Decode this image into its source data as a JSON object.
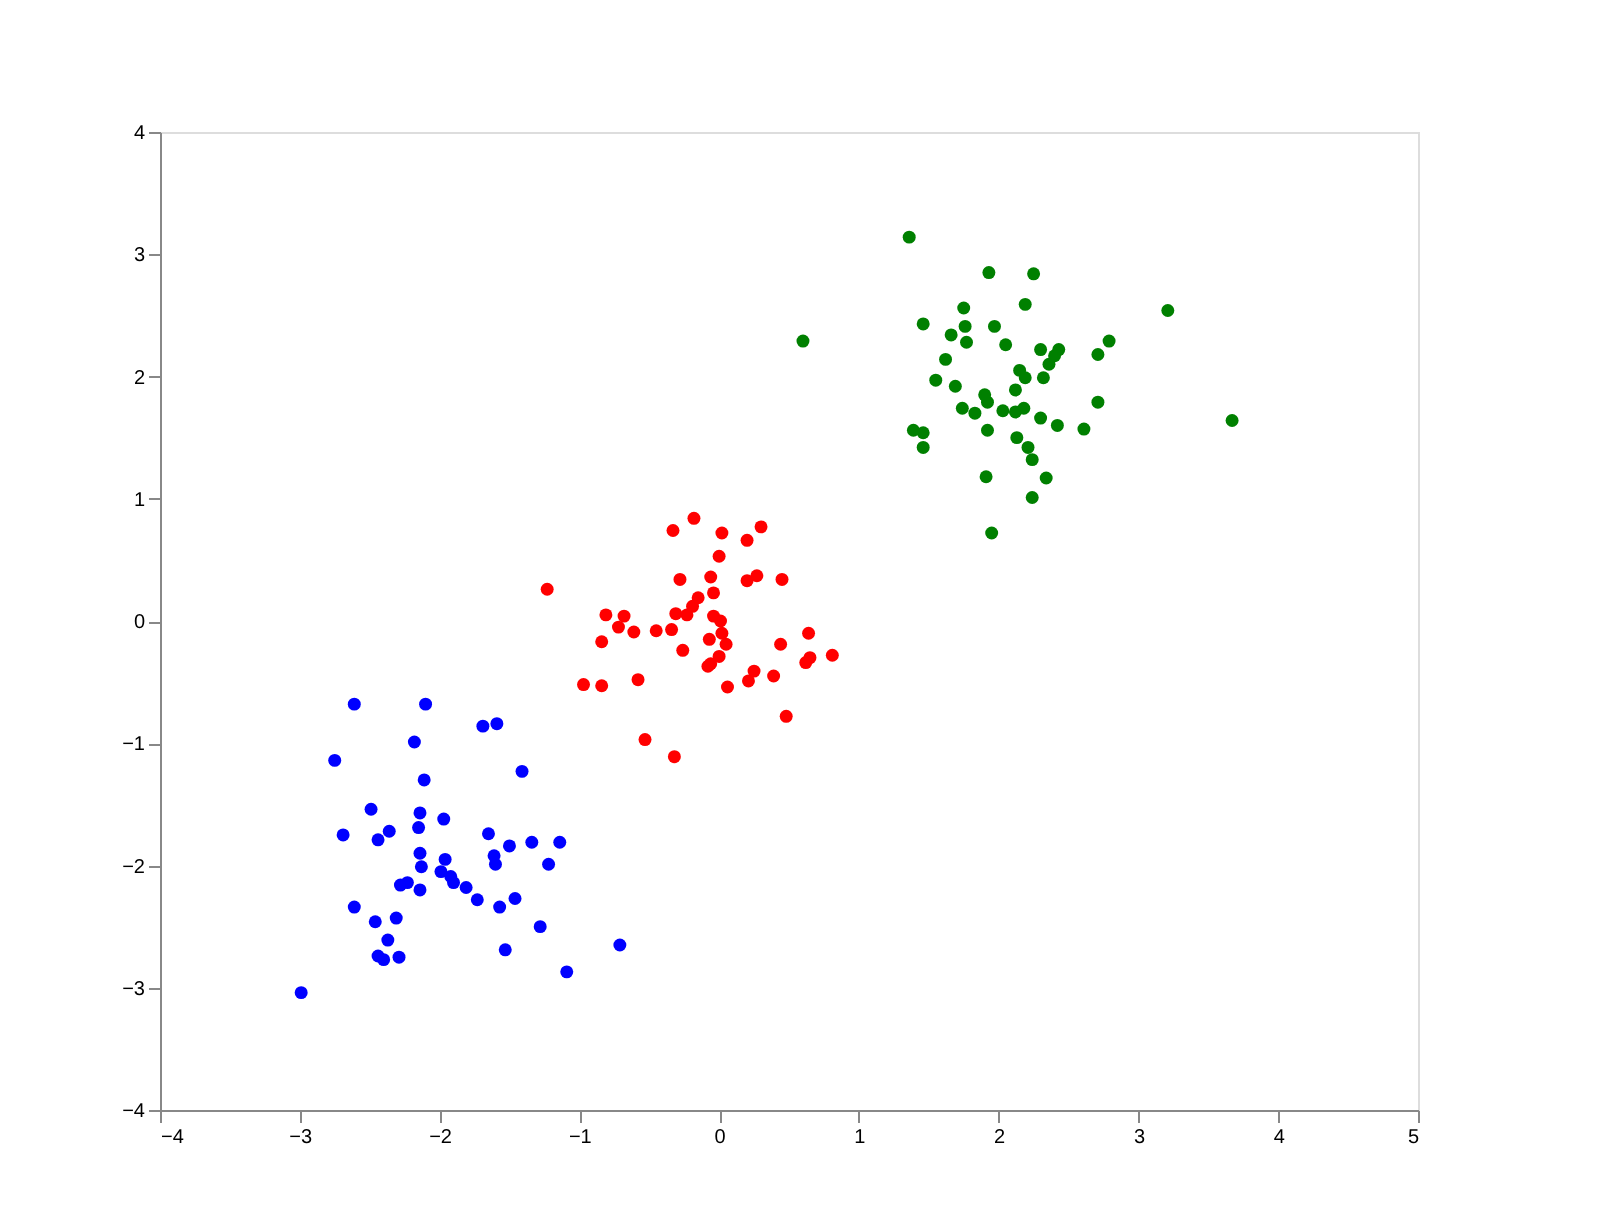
{
  "chart_data": {
    "type": "scatter",
    "marker": "circle",
    "grid": false,
    "xlim": [
      -4,
      5
    ],
    "xticks": [
      -4,
      -3,
      -2,
      -1,
      0,
      1,
      2,
      3,
      4,
      5
    ],
    "ylim": [
      -4,
      4
    ],
    "yticks": [
      -4,
      -3,
      -2,
      -1,
      0,
      1,
      2,
      3,
      4
    ],
    "series": [
      {
        "color": "#0000ff",
        "x": [
          -2.61,
          -2.1,
          -1.69,
          -1.59,
          -2.18,
          -2.75,
          -1.41,
          -2.11,
          -2.49,
          -2.14,
          -1.97,
          -2.15,
          -2.69,
          -2.36,
          -2.44,
          -1.65,
          -1.5,
          -1.34,
          -1.14,
          -1.61,
          -1.6,
          -1.22,
          -2.14,
          -1.96,
          -2.13,
          -1.99,
          -1.92,
          -1.9,
          -1.81,
          -2.23,
          -2.28,
          -2.14,
          -1.73,
          -1.57,
          -1.46,
          -2.61,
          -2.31,
          -2.46,
          -1.28,
          -2.37,
          -2.44,
          -2.4,
          -2.29,
          -1.53,
          -1.09,
          -2.99,
          -0.71
        ],
        "values": [
          -0.68,
          -0.68,
          -0.86,
          -0.84,
          -0.99,
          -1.14,
          -1.23,
          -1.3,
          -1.54,
          -1.57,
          -1.62,
          -1.69,
          -1.75,
          -1.72,
          -1.79,
          -1.74,
          -1.84,
          -1.81,
          -1.81,
          -1.92,
          -1.99,
          -1.99,
          -1.9,
          -1.95,
          -2.01,
          -2.05,
          -2.09,
          -2.14,
          -2.18,
          -2.14,
          -2.16,
          -2.2,
          -2.28,
          -2.34,
          -2.27,
          -2.34,
          -2.43,
          -2.46,
          -2.5,
          -2.61,
          -2.74,
          -2.77,
          -2.75,
          -2.69,
          -2.87,
          -3.04,
          -2.65
        ]
      },
      {
        "color": "#ff0000",
        "x": [
          -0.18,
          -0.33,
          0.02,
          0.3,
          0.2,
          0.0,
          -1.23,
          -0.28,
          -0.06,
          0.2,
          0.27,
          0.45,
          -0.04,
          -0.15,
          -0.19,
          -0.31,
          -0.23,
          -0.81,
          -0.68,
          -0.72,
          -0.61,
          -0.45,
          -0.34,
          -0.04,
          0.01,
          0.02,
          -0.84,
          -0.07,
          0.05,
          -0.26,
          0.0,
          -0.06,
          -0.08,
          0.64,
          0.44,
          0.81,
          0.65,
          0.62,
          0.25,
          0.39,
          0.21,
          0.06,
          -0.97,
          -0.84,
          -0.58,
          0.48,
          -0.53,
          -0.32
        ],
        "values": [
          0.84,
          0.74,
          0.72,
          0.77,
          0.66,
          0.53,
          0.26,
          0.34,
          0.36,
          0.33,
          0.37,
          0.34,
          0.23,
          0.19,
          0.12,
          0.06,
          0.05,
          0.05,
          0.04,
          -0.05,
          -0.09,
          -0.08,
          -0.07,
          0.04,
          0.0,
          -0.1,
          -0.17,
          -0.15,
          -0.19,
          -0.24,
          -0.29,
          -0.35,
          -0.37,
          -0.1,
          -0.19,
          -0.28,
          -0.3,
          -0.34,
          -0.41,
          -0.45,
          -0.49,
          -0.54,
          -0.52,
          -0.53,
          -0.48,
          -0.78,
          -0.97,
          -1.11
        ]
      },
      {
        "color": "#008000",
        "x": [
          1.36,
          1.93,
          2.25,
          2.19,
          3.21,
          0.6,
          1.46,
          1.75,
          1.76,
          1.66,
          1.97,
          1.77,
          2.05,
          2.3,
          2.43,
          2.4,
          2.36,
          2.79,
          2.71,
          1.62,
          2.15,
          2.19,
          2.32,
          1.55,
          1.69,
          2.12,
          1.9,
          1.92,
          2.71,
          1.74,
          1.83,
          2.03,
          2.12,
          2.18,
          2.3,
          2.42,
          2.61,
          1.39,
          1.46,
          1.92,
          3.67,
          1.46,
          2.13,
          2.21,
          2.24,
          1.91,
          2.34,
          2.24,
          1.95
        ],
        "values": [
          3.14,
          2.85,
          2.84,
          2.59,
          2.54,
          2.29,
          2.43,
          2.56,
          2.41,
          2.34,
          2.41,
          2.28,
          2.26,
          2.22,
          2.22,
          2.17,
          2.1,
          2.29,
          2.18,
          2.14,
          2.05,
          1.99,
          1.99,
          1.97,
          1.92,
          1.89,
          1.85,
          1.79,
          1.79,
          1.74,
          1.7,
          1.72,
          1.71,
          1.74,
          1.66,
          1.6,
          1.57,
          1.56,
          1.54,
          1.56,
          1.64,
          1.42,
          1.5,
          1.42,
          1.32,
          1.18,
          1.17,
          1.01,
          0.72
        ]
      }
    ]
  }
}
